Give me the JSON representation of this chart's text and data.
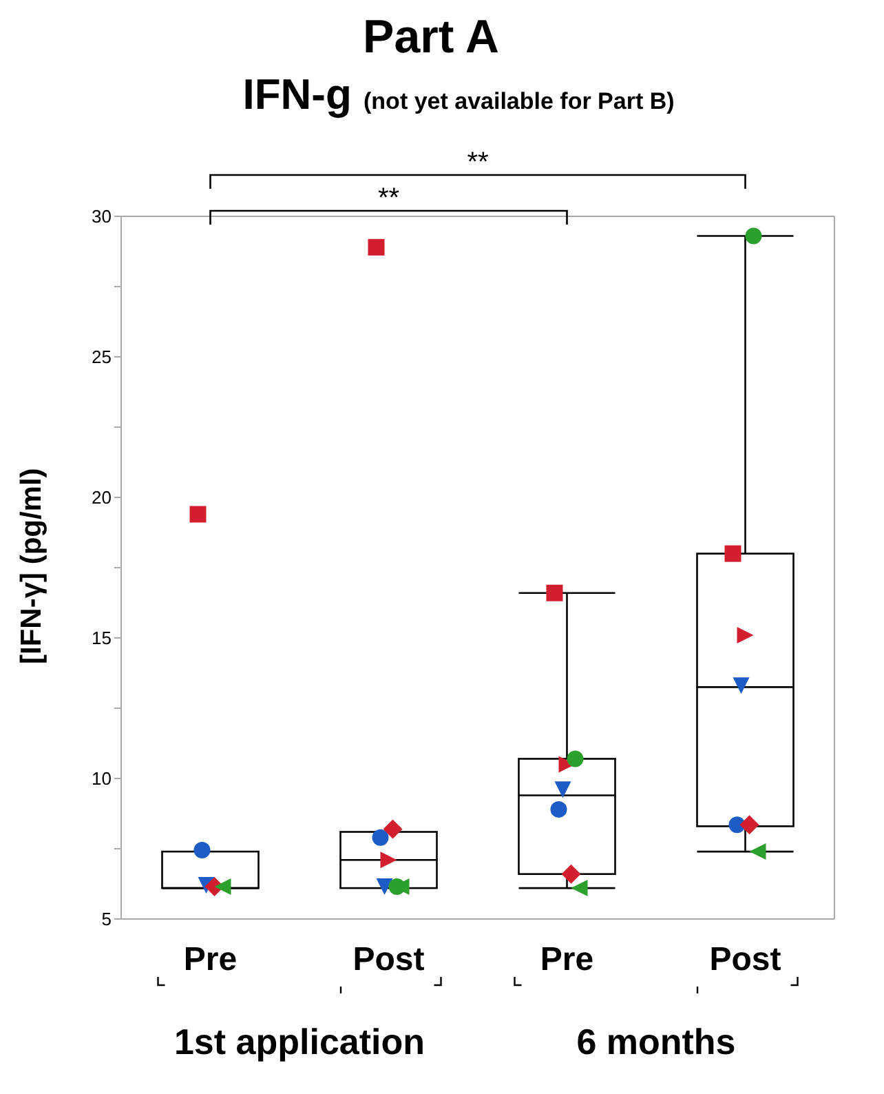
{
  "chart_data": {
    "type": "box",
    "title": "Part A",
    "subtitle": "IFN-g (not yet available for Part B)",
    "ylabel": "[IFN-γ] (pg/ml)",
    "categories": [
      "Pre",
      "Post",
      "Pre",
      "Post"
    ],
    "boxes": [
      {
        "low": 6.1,
        "q1": 6.1,
        "median": 6.1,
        "q3": 7.4,
        "high": 7.4
      },
      {
        "low": 6.1,
        "q1": 6.1,
        "median": 7.1,
        "q3": 8.1,
        "high": 8.1
      },
      {
        "low": 6.1,
        "q1": 6.6,
        "median": 9.4,
        "q3": 10.7,
        "high": 16.6
      },
      {
        "low": 7.4,
        "q1": 8.3,
        "median": 13.25,
        "q3": 18.0,
        "high": 29.3
      }
    ],
    "series": [
      {
        "type": "scatter",
        "marker": "square",
        "color": "#d11f2f",
        "values": [
          19.4,
          28.9,
          16.6,
          18.0
        ]
      },
      {
        "type": "scatter",
        "marker": "circle",
        "color": "#1c5cc4",
        "values": [
          7.45,
          7.9,
          8.9,
          8.35
        ]
      },
      {
        "type": "scatter",
        "marker": "triangle-down",
        "color": "#1c5cc4",
        "values": [
          6.2,
          6.15,
          9.6,
          13.3
        ]
      },
      {
        "type": "scatter",
        "marker": "triangle-right",
        "color": "#d11f2f",
        "values": [
          null,
          7.1,
          10.5,
          15.1
        ]
      },
      {
        "type": "scatter",
        "marker": "diamond",
        "color": "#d11f2f",
        "values": [
          6.15,
          8.2,
          6.6,
          8.35
        ]
      },
      {
        "type": "scatter",
        "marker": "circle",
        "color": "#2ca02c",
        "values": [
          null,
          6.15,
          10.7,
          29.3
        ]
      },
      {
        "type": "scatter",
        "marker": "triangle-left",
        "color": "#2ca02c",
        "values": [
          6.15,
          6.15,
          6.1,
          7.4
        ]
      }
    ],
    "ylim": [
      5,
      30
    ],
    "yticks": [
      5,
      {
        "value": 7.5,
        "label": null
      },
      10,
      {
        "value": 12.5,
        "label": null
      },
      15,
      {
        "value": 17.5,
        "label": null
      },
      20,
      {
        "value": 22.5,
        "label": null
      },
      25,
      {
        "value": 27.5,
        "label": null
      },
      30
    ],
    "annotations": [
      "**",
      "**",
      "1st application",
      "6 months"
    ]
  }
}
